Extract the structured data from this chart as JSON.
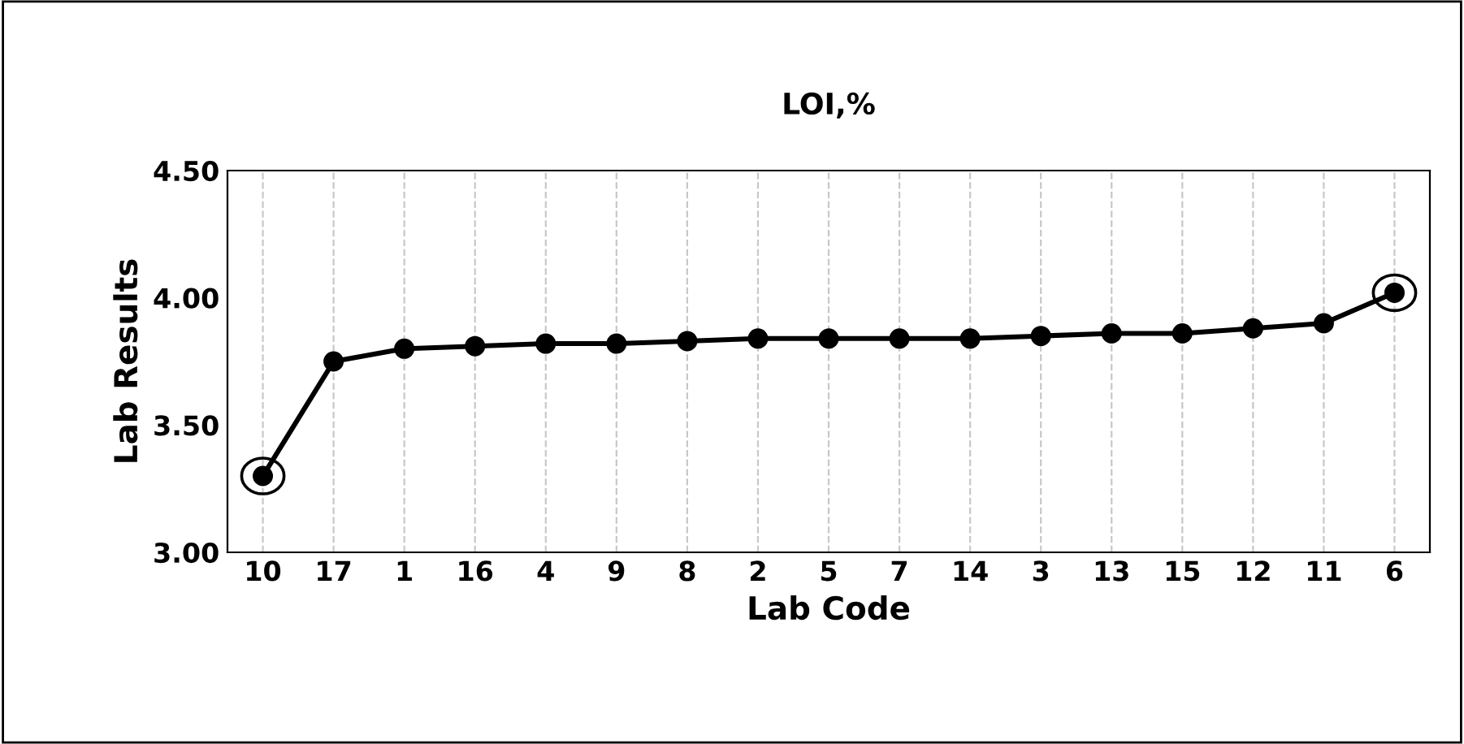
{
  "chart_data": {
    "type": "line",
    "title": "LOI,%",
    "xlabel": "Lab Code",
    "ylabel": "Lab Results",
    "categories": [
      "10",
      "17",
      "1",
      "16",
      "4",
      "9",
      "8",
      "2",
      "5",
      "7",
      "14",
      "3",
      "13",
      "15",
      "12",
      "11",
      "6"
    ],
    "series": [
      {
        "color": "#000000",
        "values": [
          3.3,
          3.75,
          3.8,
          3.81,
          3.82,
          3.82,
          3.83,
          3.84,
          3.84,
          3.84,
          3.84,
          3.85,
          3.86,
          3.86,
          3.88,
          3.9,
          4.02
        ]
      }
    ],
    "ylim": [
      3.0,
      4.5
    ],
    "yticks": [
      {
        "value": 3.0,
        "label": "3.00"
      },
      {
        "value": 3.5,
        "label": "3.50"
      },
      {
        "value": 4.0,
        "label": "4.00"
      },
      {
        "value": 4.5,
        "label": "4.50"
      }
    ],
    "grid": "x",
    "marker": "circle",
    "line_style": "solid"
  }
}
